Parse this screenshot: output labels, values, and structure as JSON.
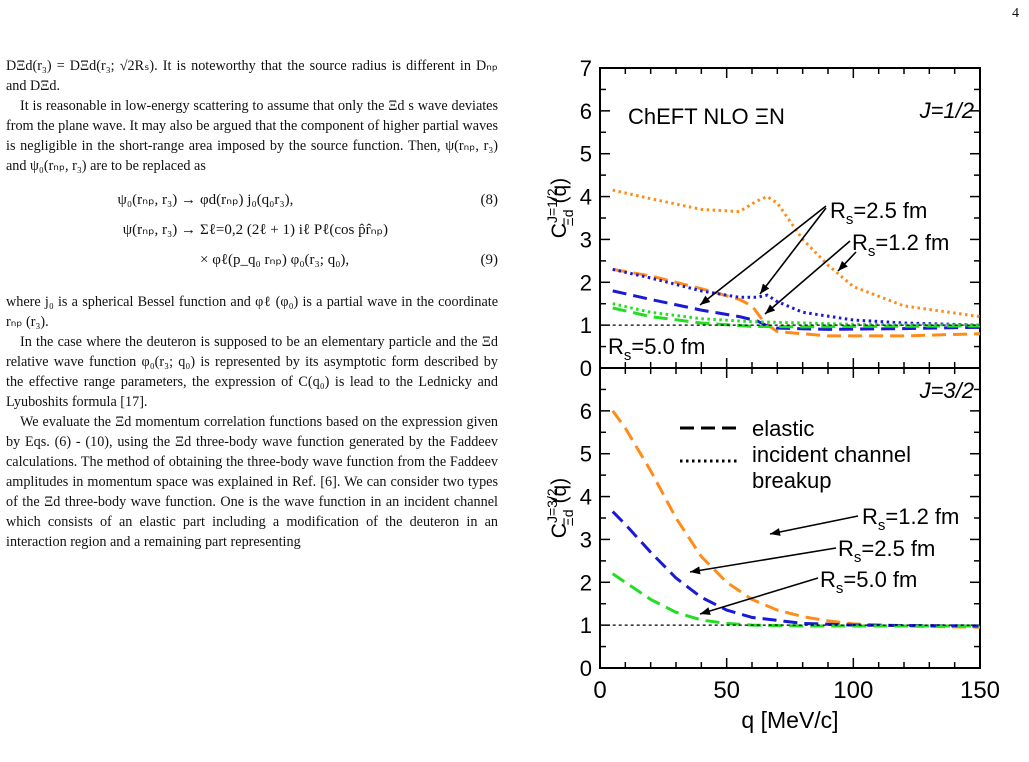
{
  "page_number": "4",
  "text": {
    "p1": "DΞd(r₃) = DΞd(r₃; √2Rₛ). It is noteworthy that the source radius is different in Dₙₚ and DΞd.",
    "p2": "It is reasonable in low-energy scattering to assume that only the Ξd s wave deviates from the plane wave. It may also be argued that the component of higher partial waves is negligible in the short-range area imposed by the source function. Then, ψ(rₙₚ, r₃) and ψ₀(rₙₚ, r₃) are to be replaced as",
    "eq8_lhs": "ψ₀(rₙₚ, r₃) →",
    "eq8_rhs": "φd(rₙₚ) j₀(q₀r₃),",
    "eq8_num": "(8)",
    "eq9a_lhs": "ψ(rₙₚ, r₃) →",
    "eq9a_rhs": "Σℓ=0,2 (2ℓ + 1) iℓ Pℓ(cos p̂r̂ₙₚ)",
    "eq9b_rhs": "× φℓ(p_q₀ rₙₚ) φ₀(r₃; q₀),",
    "eq9_num": "(9)",
    "p3": "where j₀ is a spherical Bessel function and φℓ (φ₀) is a partial wave in the coordinate rₙₚ (r₃).",
    "p4": "In the case where the deuteron is supposed to be an elementary particle and the Ξd relative wave function φ₀(r₃; q₀) is represented by its asymptotic form described by the effective range parameters, the expression of C(q₀) is lead to the Lednicky and Lyuboshits formula [17].",
    "p5": "We evaluate the Ξd momentum correlation functions based on the expression given by Eqs. (6) - (10), using the Ξd three-body wave function generated by the Faddeev calculations. The method of obtaining the three-body wave function from the Faddeev amplitudes in momentum space was explained in Ref. [6]. We can consider two types of the Ξd three-body wave function. One is the wave function in an incident channel which consists of an elastic part including a modification of the deuteron in an interaction region and a remaining part representing"
  },
  "chart_data": [
    {
      "type": "line",
      "panel": "top",
      "title": "ChEFT NLO ΞN",
      "label": "J=1/2",
      "ylabel": "C^{J=1/2}_{Ξd}(q)",
      "xlim": [
        0,
        150
      ],
      "ylim": [
        0,
        7
      ],
      "yticks": [
        "0",
        "1",
        "2",
        "3",
        "4",
        "5",
        "6",
        "7"
      ],
      "annotations": [
        "Rs=2.5 fm",
        "Rs=1.2 fm",
        "Rs=5.0 fm"
      ],
      "colors": {
        "Rs=1.2 fm": "#ff8c1a",
        "Rs=2.5 fm": "#1a1ad6",
        "Rs=5.0 fm": "#22dd22"
      },
      "series": [
        {
          "style": "dotted",
          "color": "#ff8c1a",
          "x": [
            5,
            20,
            40,
            55,
            62,
            66,
            70,
            80,
            90,
            100,
            120,
            150
          ],
          "y": [
            4.15,
            3.95,
            3.7,
            3.65,
            3.9,
            4.0,
            3.85,
            3.0,
            2.4,
            1.9,
            1.45,
            1.2
          ]
        },
        {
          "style": "dashed",
          "color": "#ff8c1a",
          "x": [
            5,
            20,
            40,
            55,
            60,
            65,
            70,
            90,
            120,
            150
          ],
          "y": [
            2.3,
            2.15,
            1.85,
            1.6,
            1.45,
            1.05,
            0.85,
            0.75,
            0.75,
            0.8
          ]
        },
        {
          "style": "dotted",
          "color": "#1a1ad6",
          "x": [
            5,
            20,
            40,
            55,
            62,
            66,
            70,
            80,
            100,
            120,
            150
          ],
          "y": [
            2.3,
            2.1,
            1.8,
            1.65,
            1.65,
            1.7,
            1.55,
            1.3,
            1.12,
            1.05,
            1.0
          ]
        },
        {
          "style": "dashed",
          "color": "#1a1ad6",
          "x": [
            5,
            20,
            40,
            55,
            62,
            66,
            70,
            90,
            120,
            150
          ],
          "y": [
            1.8,
            1.6,
            1.35,
            1.2,
            1.1,
            0.98,
            0.93,
            0.9,
            0.92,
            0.95
          ]
        },
        {
          "style": "dotted",
          "color": "#22dd22",
          "x": [
            5,
            20,
            40,
            60,
            80,
            100,
            150
          ],
          "y": [
            1.5,
            1.3,
            1.15,
            1.08,
            1.05,
            1.02,
            1.0
          ]
        },
        {
          "style": "dashed",
          "color": "#22dd22",
          "x": [
            5,
            20,
            40,
            60,
            80,
            100,
            150
          ],
          "y": [
            1.4,
            1.2,
            1.05,
            0.97,
            0.96,
            0.97,
            0.98
          ]
        },
        {
          "style": "dashed-thin",
          "color": "#000000",
          "x": [
            5,
            150
          ],
          "y": [
            1,
            1
          ]
        }
      ]
    },
    {
      "type": "line",
      "panel": "bottom",
      "label": "J=3/2",
      "ylabel": "C^{J=3/2}_{Ξd}(q)",
      "xlabel": "q [MeV/c]",
      "xlim": [
        0,
        150
      ],
      "ylim": [
        0,
        7
      ],
      "xticks": [
        "0",
        "50",
        "100",
        "150"
      ],
      "yticks": [
        "0",
        "1",
        "2",
        "3",
        "4",
        "5",
        "6"
      ],
      "legend": [
        {
          "label": "elastic",
          "style": "dashed"
        },
        {
          "label": "incident channel",
          "style": "dotted"
        },
        {
          "label": "breakup",
          "style": "none"
        }
      ],
      "annotations": [
        "Rs=1.2 fm",
        "Rs=2.5 fm",
        "Rs=5.0 fm"
      ],
      "series": [
        {
          "style": "dashed",
          "color": "#ff8c1a",
          "x": [
            5,
            10,
            20,
            30,
            40,
            50,
            60,
            70,
            80,
            90,
            100,
            120,
            150
          ],
          "y": [
            6.0,
            5.6,
            4.6,
            3.5,
            2.6,
            2.0,
            1.6,
            1.35,
            1.2,
            1.1,
            1.03,
            0.98,
            0.95
          ]
        },
        {
          "style": "dashed",
          "color": "#1a1ad6",
          "x": [
            5,
            10,
            20,
            30,
            40,
            50,
            60,
            80,
            100,
            150
          ],
          "y": [
            3.65,
            3.35,
            2.7,
            2.1,
            1.65,
            1.35,
            1.18,
            1.04,
            1.0,
            0.98
          ]
        },
        {
          "style": "dashed",
          "color": "#22dd22",
          "x": [
            5,
            10,
            20,
            30,
            40,
            50,
            60,
            80,
            100,
            150
          ],
          "y": [
            2.2,
            2.0,
            1.6,
            1.3,
            1.12,
            1.04,
            1.0,
            0.98,
            0.98,
            0.98
          ]
        },
        {
          "style": "dashed-thin",
          "color": "#000000",
          "x": [
            5,
            150
          ],
          "y": [
            1,
            1
          ]
        }
      ]
    }
  ]
}
